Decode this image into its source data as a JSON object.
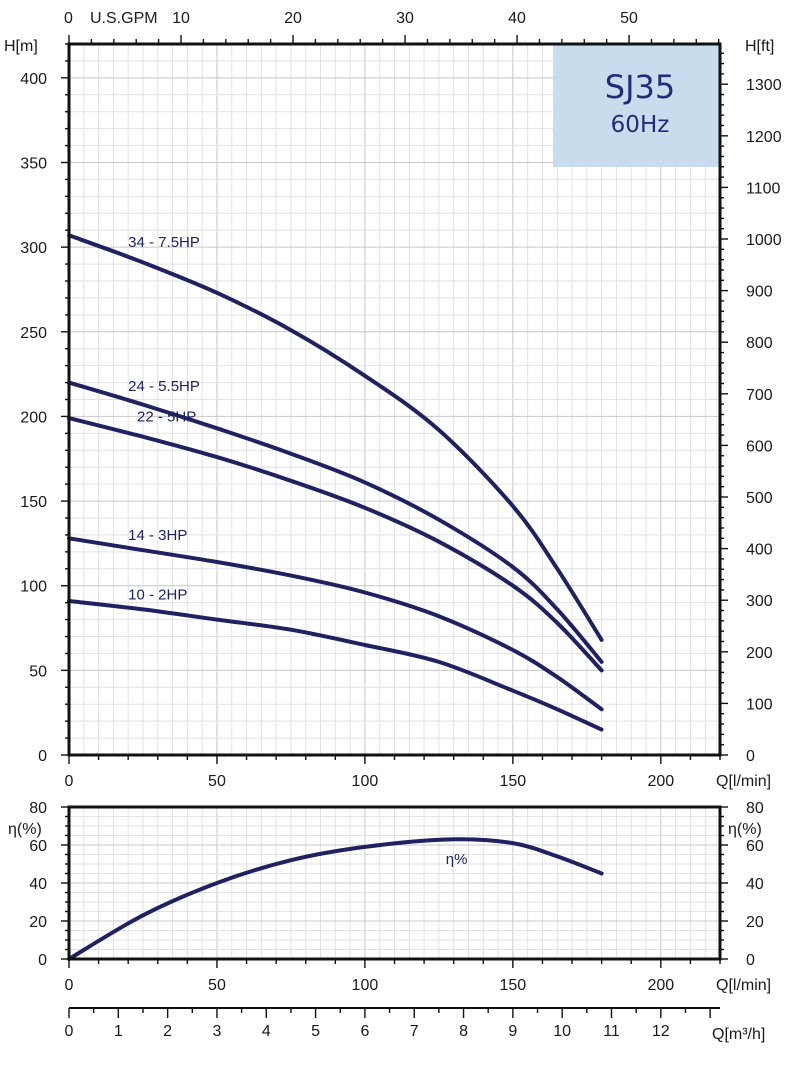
{
  "chart_data": [
    {
      "type": "line",
      "title": "SJ35",
      "subtitle": "60Hz",
      "xlabel": "Q[l/min]",
      "ylabel_left": "H[m]",
      "ylabel_right": "H[ft]",
      "xlabel_top_prefix": "0",
      "xlabel_top": "U.S.GPM",
      "xlim": [
        0,
        220
      ],
      "ylim": [
        0,
        420
      ],
      "x_ticks": [
        0,
        50,
        100,
        150,
        200
      ],
      "y_ticks": [
        0,
        50,
        100,
        150,
        200,
        250,
        300,
        350,
        400
      ],
      "top_axis_ticks": [
        10,
        20,
        30,
        40,
        50
      ],
      "right_axis_ticks": [
        0,
        100,
        200,
        300,
        400,
        500,
        600,
        700,
        800,
        900,
        1000,
        1100,
        1200,
        1300
      ],
      "grid": true,
      "title_box_color": "#c8dcee",
      "series_color": "#1f2160",
      "series": [
        {
          "name": "34 - 7.5HP",
          "x": [
            0,
            25,
            50,
            75,
            100,
            125,
            150,
            165,
            180
          ],
          "y": [
            307,
            291,
            273,
            251,
            224,
            192,
            147,
            110,
            68
          ]
        },
        {
          "name": "24 - 5.5HP",
          "x": [
            0,
            25,
            50,
            75,
            100,
            125,
            150,
            165,
            180
          ],
          "y": [
            220,
            207,
            193,
            178,
            161,
            139,
            111,
            86,
            55
          ]
        },
        {
          "name": "22 - 5HP",
          "x": [
            0,
            25,
            50,
            75,
            100,
            125,
            150,
            165,
            180
          ],
          "y": [
            199,
            188,
            176,
            162,
            146,
            126,
            100,
            78,
            50
          ]
        },
        {
          "name": "14 - 3HP",
          "x": [
            0,
            25,
            50,
            75,
            100,
            125,
            150,
            165,
            180
          ],
          "y": [
            128,
            121,
            114,
            106,
            96,
            82,
            62,
            46,
            27
          ]
        },
        {
          "name": "10 - 2HP",
          "x": [
            0,
            25,
            50,
            75,
            100,
            125,
            150,
            165,
            180
          ],
          "y": [
            91,
            86,
            80,
            74,
            65,
            55,
            38,
            27,
            15
          ]
        }
      ]
    },
    {
      "type": "line",
      "xlabel": "Q[l/min]",
      "ylabel_left": "η(%)",
      "ylabel_right": "η(%)",
      "xlim": [
        0,
        220
      ],
      "ylim": [
        0,
        80
      ],
      "x_ticks": [
        0,
        50,
        100,
        150,
        200
      ],
      "y_ticks": [
        0,
        20,
        40,
        60,
        80
      ],
      "grid": true,
      "series": [
        {
          "name": "η%",
          "x": [
            0,
            25,
            50,
            75,
            100,
            130,
            150,
            165,
            180
          ],
          "y": [
            0,
            23,
            40,
            52,
            59,
            63,
            61,
            54,
            45
          ]
        }
      ]
    },
    {
      "type": "axis",
      "xlabel": "Q[m³/h]",
      "x_ticks": [
        0,
        1,
        2,
        3,
        4,
        5,
        6,
        7,
        8,
        9,
        10,
        11,
        12
      ]
    }
  ]
}
